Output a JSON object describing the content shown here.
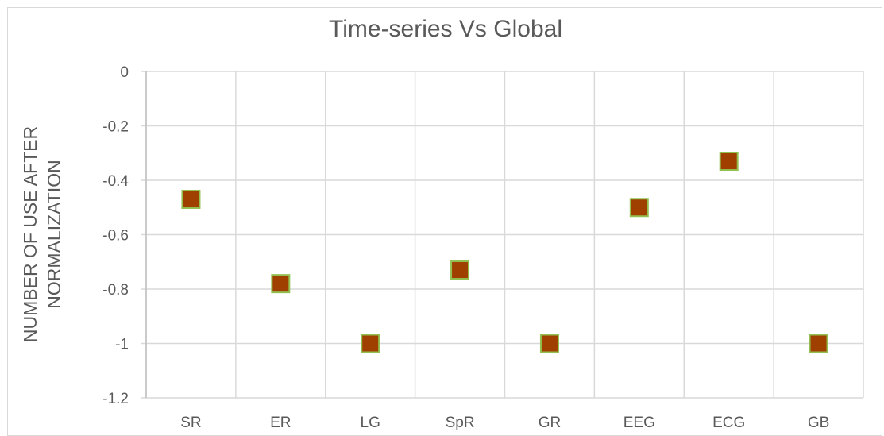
{
  "chart_data": {
    "type": "scatter",
    "title": "Time-series Vs Global",
    "xlabel": "",
    "ylabel_lines": [
      "NUMBER OF USE AFTER",
      "NORMALIZATION"
    ],
    "categories": [
      "SR",
      "ER",
      "LG",
      "SpR",
      "GR",
      "EEG",
      "ECG",
      "GB"
    ],
    "series": [
      {
        "values": [
          -0.47,
          -0.78,
          -1,
          -0.73,
          -1,
          -0.5,
          -0.33,
          -1
        ]
      }
    ],
    "ylim": [
      -1.2,
      0
    ],
    "yticks": [
      "0",
      "-0.2",
      "-0.4",
      "-0.6",
      "-0.8",
      "-1",
      "-1.2"
    ],
    "grid": true,
    "legend": "none",
    "colors": {
      "marker_fill": "#a04000",
      "marker_stroke": "#92c050",
      "grid": "#d9d9d9",
      "text": "#595959"
    }
  }
}
